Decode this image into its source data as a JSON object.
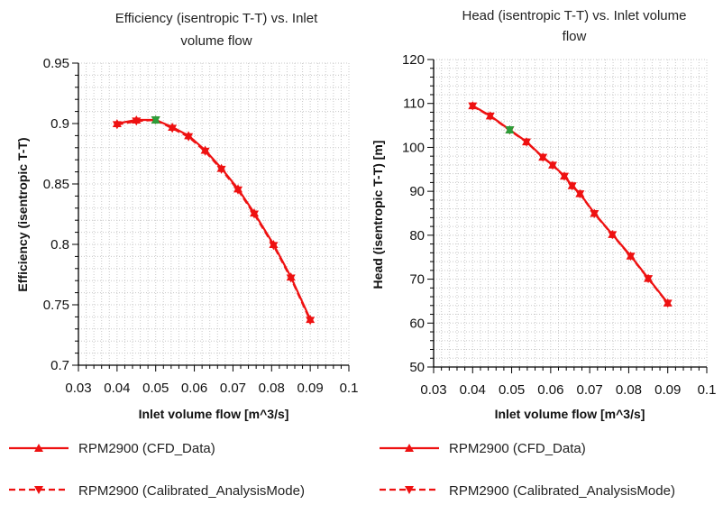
{
  "colors": {
    "series": "#ee1111",
    "highlight": "#2e9e3a",
    "grid": "#c8c8c8",
    "axis": "#000000"
  },
  "chart_data": [
    {
      "type": "line",
      "title_lines": [
        "Efficiency (isentropic T-T) vs. Inlet",
        "volume flow"
      ],
      "xlabel": "Inlet volume flow [m^3/s]",
      "ylabel": "Efficiency (isentropic T-T)",
      "xlim": [
        0.03,
        0.1
      ],
      "ylim": [
        0.7,
        0.95
      ],
      "xticks": [
        "0.03",
        "0.04",
        "0.05",
        "0.06",
        "0.07",
        "0.08",
        "0.09",
        "0.1"
      ],
      "yticks": [
        "0.7",
        "0.75",
        "0.8",
        "0.85",
        "0.9",
        "0.95"
      ],
      "grid": true,
      "series": [
        {
          "name": "RPM2900 (CFD_Data)",
          "marker": "triangle-up",
          "line": "solid",
          "x": [
            0.04,
            0.045,
            0.05,
            0.0543,
            0.0585,
            0.0628,
            0.067,
            0.0713,
            0.0755,
            0.0805,
            0.085,
            0.09
          ],
          "y": [
            0.9,
            0.903,
            0.903,
            0.897,
            0.89,
            0.878,
            0.863,
            0.846,
            0.826,
            0.8,
            0.773,
            0.738
          ]
        },
        {
          "name": "RPM2900 (Calibrated_AnalysisMode)",
          "marker": "triangle-down",
          "line": "dashed",
          "x": [
            0.04,
            0.045,
            0.05,
            0.0543,
            0.0585,
            0.0628,
            0.067,
            0.0713,
            0.0755,
            0.0805,
            0.085,
            0.09
          ],
          "y": [
            0.899,
            0.902,
            0.903,
            0.896,
            0.889,
            0.877,
            0.862,
            0.845,
            0.825,
            0.799,
            0.772,
            0.737
          ]
        }
      ],
      "highlight_point": {
        "x": 0.05,
        "y": 0.903
      }
    },
    {
      "type": "line",
      "title_lines": [
        "Head (isentropic T-T) vs. Inlet volume",
        "flow"
      ],
      "xlabel": "Inlet volume flow [m^3/s]",
      "ylabel": "Head (isentropic T-T) [m]",
      "xlim": [
        0.03,
        0.1
      ],
      "ylim": [
        50,
        120
      ],
      "xticks": [
        "0.03",
        "0.04",
        "0.05",
        "0.06",
        "0.07",
        "0.08",
        "0.09",
        "0.1"
      ],
      "yticks": [
        "50",
        "60",
        "70",
        "80",
        "90",
        "100",
        "110",
        "120"
      ],
      "grid": true,
      "series": [
        {
          "name": "RPM2900 (CFD_Data)",
          "marker": "triangle-up",
          "line": "solid",
          "x": [
            0.04,
            0.0445,
            0.0495,
            0.0538,
            0.058,
            0.0605,
            0.0635,
            0.0655,
            0.0675,
            0.0712,
            0.0758,
            0.0805,
            0.085,
            0.09
          ],
          "y": [
            109.5,
            107.2,
            104.0,
            101.3,
            97.8,
            96.0,
            93.5,
            91.3,
            89.5,
            85.0,
            80.2,
            75.3,
            70.2,
            64.6
          ]
        },
        {
          "name": "RPM2900 (Calibrated_AnalysisMode)",
          "marker": "triangle-down",
          "line": "dashed",
          "x": [
            0.04,
            0.0445,
            0.0495,
            0.0538,
            0.058,
            0.0605,
            0.0635,
            0.0655,
            0.0675,
            0.0712,
            0.0758,
            0.0805,
            0.085,
            0.09
          ],
          "y": [
            109.4,
            107.1,
            103.9,
            101.2,
            97.7,
            95.9,
            93.4,
            91.2,
            89.4,
            84.9,
            80.1,
            75.2,
            70.1,
            64.5
          ]
        }
      ],
      "highlight_point": {
        "x": 0.0495,
        "y": 104.0
      }
    }
  ]
}
